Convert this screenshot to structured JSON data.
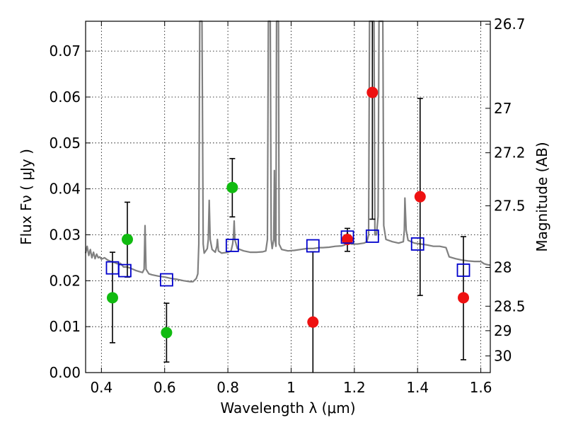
{
  "chart_data": {
    "type": "scatter",
    "xlabel": "Wavelength  λ (μm)",
    "ylabel": "Flux  Fν  ( μJy )",
    "y2label": "Magnitude (AB)",
    "xlim": [
      0.35,
      1.63
    ],
    "ylim": [
      0.0,
      0.0765
    ],
    "x_ticks": [
      {
        "value": 0.4,
        "label": "0.4"
      },
      {
        "value": 0.6,
        "label": "0.6"
      },
      {
        "value": 0.8,
        "label": "0.8"
      },
      {
        "value": 1.0,
        "label": "1"
      },
      {
        "value": 1.2,
        "label": "1.2"
      },
      {
        "value": 1.4,
        "label": "1.4"
      },
      {
        "value": 1.6,
        "label": "1.6"
      }
    ],
    "y_ticks": [
      {
        "value": 0.0,
        "label": "0.00"
      },
      {
        "value": 0.01,
        "label": "0.01"
      },
      {
        "value": 0.02,
        "label": "0.02"
      },
      {
        "value": 0.03,
        "label": "0.03"
      },
      {
        "value": 0.04,
        "label": "0.04"
      },
      {
        "value": 0.05,
        "label": "0.05"
      },
      {
        "value": 0.06,
        "label": "0.06"
      },
      {
        "value": 0.07,
        "label": "0.07"
      }
    ],
    "y2_ticks": [
      {
        "value": 26.7,
        "label": "26.7"
      },
      {
        "value": 27.0,
        "label": "27"
      },
      {
        "value": 27.2,
        "label": "27.2"
      },
      {
        "value": 27.5,
        "label": "27.5"
      },
      {
        "value": 28.0,
        "label": "28"
      },
      {
        "value": 28.5,
        "label": "28.5"
      },
      {
        "value": 29.0,
        "label": "29"
      },
      {
        "value": 30.0,
        "label": "30"
      }
    ],
    "grid": true,
    "colors": {
      "green": "#11bb11",
      "red": "#ee1111",
      "blue": "#0000cc",
      "model": "#808080",
      "errorbar": "#000000"
    },
    "series": [
      {
        "name": "green points",
        "marker": "circle",
        "color": "#11bb11",
        "points": [
          {
            "x": 0.435,
            "y": 0.0163,
            "yerr_low": 0.0065,
            "yerr_high": 0.0262
          },
          {
            "x": 0.482,
            "y": 0.029,
            "yerr_low": 0.0208,
            "yerr_high": 0.0371
          },
          {
            "x": 0.606,
            "y": 0.0087,
            "yerr_low": 0.0023,
            "yerr_high": 0.0151
          },
          {
            "x": 0.814,
            "y": 0.0403,
            "yerr_low": 0.0339,
            "yerr_high": 0.0466
          }
        ]
      },
      {
        "name": "red points",
        "marker": "circle",
        "color": "#ee1111",
        "points": [
          {
            "x": 1.069,
            "y": 0.011,
            "yerr_low": 0.0,
            "yerr_high": 0.0263
          },
          {
            "x": 1.178,
            "y": 0.029,
            "yerr_low": 0.0264,
            "yerr_high": 0.0314
          },
          {
            "x": 1.257,
            "y": 0.061,
            "yerr_low": 0.0334,
            "yerr_high": 0.0765
          },
          {
            "x": 1.408,
            "y": 0.0383,
            "yerr_low": 0.0168,
            "yerr_high": 0.0597
          },
          {
            "x": 1.545,
            "y": 0.0163,
            "yerr_low": 0.0028,
            "yerr_high": 0.0296
          }
        ]
      },
      {
        "name": "model photometry",
        "marker": "open-square",
        "color": "#0000cc",
        "points": [
          {
            "x": 0.435,
            "y": 0.0228
          },
          {
            "x": 0.474,
            "y": 0.0222
          },
          {
            "x": 0.606,
            "y": 0.0202
          },
          {
            "x": 0.814,
            "y": 0.0277
          },
          {
            "x": 1.069,
            "y": 0.0276
          },
          {
            "x": 1.178,
            "y": 0.0295
          },
          {
            "x": 1.257,
            "y": 0.0297
          },
          {
            "x": 1.4,
            "y": 0.028
          },
          {
            "x": 1.545,
            "y": 0.0223
          }
        ]
      }
    ],
    "model_spectrum": {
      "name": "model spectrum",
      "color": "#808080",
      "points": [
        [
          0.35,
          0.026
        ],
        [
          0.355,
          0.0275
        ],
        [
          0.36,
          0.0255
        ],
        [
          0.365,
          0.0268
        ],
        [
          0.37,
          0.025
        ],
        [
          0.375,
          0.0262
        ],
        [
          0.38,
          0.0248
        ],
        [
          0.385,
          0.0258
        ],
        [
          0.39,
          0.025
        ],
        [
          0.395,
          0.0252
        ],
        [
          0.4,
          0.0247
        ],
        [
          0.41,
          0.025
        ],
        [
          0.42,
          0.0245
        ],
        [
          0.43,
          0.0242
        ],
        [
          0.44,
          0.024
        ],
        [
          0.45,
          0.0237
        ],
        [
          0.46,
          0.0238
        ],
        [
          0.47,
          0.023
        ],
        [
          0.48,
          0.023
        ],
        [
          0.49,
          0.0228
        ],
        [
          0.5,
          0.0225
        ],
        [
          0.51,
          0.0222
        ],
        [
          0.52,
          0.022
        ],
        [
          0.53,
          0.0218
        ],
        [
          0.535,
          0.0225
        ],
        [
          0.538,
          0.032
        ],
        [
          0.541,
          0.0225
        ],
        [
          0.55,
          0.0215
        ],
        [
          0.56,
          0.0213
        ],
        [
          0.58,
          0.021
        ],
        [
          0.6,
          0.0208
        ],
        [
          0.62,
          0.0205
        ],
        [
          0.64,
          0.0203
        ],
        [
          0.66,
          0.02
        ],
        [
          0.68,
          0.0198
        ],
        [
          0.69,
          0.0198
        ],
        [
          0.7,
          0.0205
        ],
        [
          0.705,
          0.0215
        ],
        [
          0.708,
          0.028
        ],
        [
          0.711,
          0.0765
        ],
        [
          0.718,
          0.0765
        ],
        [
          0.722,
          0.028
        ],
        [
          0.725,
          0.026
        ],
        [
          0.735,
          0.027
        ],
        [
          0.738,
          0.029
        ],
        [
          0.741,
          0.0375
        ],
        [
          0.744,
          0.029
        ],
        [
          0.75,
          0.0268
        ],
        [
          0.76,
          0.0262
        ],
        [
          0.765,
          0.0275
        ],
        [
          0.767,
          0.029
        ],
        [
          0.77,
          0.0265
        ],
        [
          0.78,
          0.026
        ],
        [
          0.8,
          0.0262
        ],
        [
          0.81,
          0.0265
        ],
        [
          0.815,
          0.028
        ],
        [
          0.818,
          0.0298
        ],
        [
          0.82,
          0.033
        ],
        [
          0.822,
          0.029
        ],
        [
          0.83,
          0.027
        ],
        [
          0.85,
          0.0265
        ],
        [
          0.87,
          0.0262
        ],
        [
          0.89,
          0.0262
        ],
        [
          0.91,
          0.0263
        ],
        [
          0.92,
          0.0265
        ],
        [
          0.925,
          0.029
        ],
        [
          0.928,
          0.0765
        ],
        [
          0.934,
          0.0765
        ],
        [
          0.937,
          0.029
        ],
        [
          0.94,
          0.027
        ],
        [
          0.945,
          0.029
        ],
        [
          0.947,
          0.044
        ],
        [
          0.949,
          0.029
        ],
        [
          0.952,
          0.0275
        ],
        [
          0.954,
          0.0765
        ],
        [
          0.96,
          0.0765
        ],
        [
          0.962,
          0.028
        ],
        [
          0.97,
          0.0268
        ],
        [
          0.99,
          0.0265
        ],
        [
          1.01,
          0.0266
        ],
        [
          1.03,
          0.0268
        ],
        [
          1.05,
          0.027
        ],
        [
          1.07,
          0.027
        ],
        [
          1.09,
          0.0272
        ],
        [
          1.1,
          0.0272
        ],
        [
          1.12,
          0.0273
        ],
        [
          1.14,
          0.0275
        ],
        [
          1.16,
          0.0276
        ],
        [
          1.17,
          0.0278
        ],
        [
          1.175,
          0.0292
        ],
        [
          1.178,
          0.0305
        ],
        [
          1.181,
          0.0292
        ],
        [
          1.19,
          0.028
        ],
        [
          1.21,
          0.028
        ],
        [
          1.23,
          0.0282
        ],
        [
          1.24,
          0.0285
        ],
        [
          1.245,
          0.03
        ],
        [
          1.248,
          0.0765
        ],
        [
          1.262,
          0.0765
        ],
        [
          1.265,
          0.03
        ],
        [
          1.27,
          0.03
        ],
        [
          1.275,
          0.034
        ],
        [
          1.278,
          0.0765
        ],
        [
          1.29,
          0.0765
        ],
        [
          1.293,
          0.032
        ],
        [
          1.3,
          0.029
        ],
        [
          1.32,
          0.0285
        ],
        [
          1.34,
          0.0282
        ],
        [
          1.355,
          0.0285
        ],
        [
          1.358,
          0.031
        ],
        [
          1.36,
          0.038
        ],
        [
          1.364,
          0.031
        ],
        [
          1.37,
          0.0288
        ],
        [
          1.39,
          0.0282
        ],
        [
          1.41,
          0.028
        ],
        [
          1.43,
          0.0278
        ],
        [
          1.45,
          0.0275
        ],
        [
          1.47,
          0.0275
        ],
        [
          1.49,
          0.0272
        ],
        [
          1.5,
          0.0252
        ],
        [
          1.51,
          0.025
        ],
        [
          1.52,
          0.0248
        ],
        [
          1.54,
          0.0245
        ],
        [
          1.56,
          0.0243
        ],
        [
          1.58,
          0.0242
        ],
        [
          1.6,
          0.0242
        ],
        [
          1.61,
          0.0237
        ],
        [
          1.62,
          0.0235
        ],
        [
          1.63,
          0.0234
        ]
      ]
    }
  }
}
